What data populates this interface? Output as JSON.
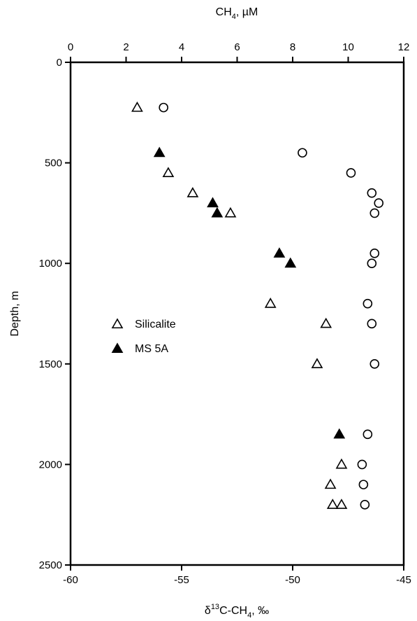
{
  "chart_data": {
    "type": "scatter",
    "top_axis": {
      "label_main": "CH",
      "label_sub": "4",
      "label_rest": ", µM",
      "range": [
        0,
        12
      ],
      "ticks": [
        "0",
        "2",
        "4",
        "6",
        "8",
        "10",
        "12"
      ]
    },
    "bottom_axis": {
      "label_delta": "δ",
      "label_sup": "13",
      "label_main": "C-CH",
      "label_sub": "4",
      "label_rest": ", ‰",
      "range": [
        -60,
        -45
      ],
      "ticks": [
        "-60",
        "-55",
        "-50",
        "-45"
      ]
    },
    "y_axis": {
      "label": "Depth, m",
      "range": [
        0,
        2500
      ],
      "inverted": true,
      "ticks": [
        "0",
        "500",
        "1000",
        "1500",
        "2000",
        "2500"
      ]
    },
    "series": [
      {
        "name": "Silicalite",
        "marker": "open-triangle",
        "axis": "bottom",
        "points": [
          [
            -57.0,
            225
          ],
          [
            -55.6,
            550
          ],
          [
            -54.5,
            650
          ],
          [
            -52.8,
            750
          ],
          [
            -51.0,
            1200
          ],
          [
            -48.5,
            1300
          ],
          [
            -48.9,
            1500
          ],
          [
            -47.8,
            2000
          ],
          [
            -48.3,
            2100
          ],
          [
            -48.2,
            2200
          ],
          [
            -47.8,
            2200
          ]
        ]
      },
      {
        "name": "MS 5A",
        "marker": "filled-triangle",
        "axis": "bottom",
        "points": [
          [
            -56.0,
            450
          ],
          [
            -53.6,
            700
          ],
          [
            -53.4,
            750
          ],
          [
            -50.6,
            950
          ],
          [
            -50.1,
            1000
          ],
          [
            -47.9,
            1850
          ]
        ]
      },
      {
        "name": "",
        "marker": "open-circle",
        "axis": "top",
        "points": [
          [
            3.35,
            225
          ],
          [
            8.35,
            450
          ],
          [
            10.1,
            550
          ],
          [
            10.85,
            650
          ],
          [
            11.1,
            700
          ],
          [
            10.95,
            750
          ],
          [
            10.95,
            950
          ],
          [
            10.85,
            1000
          ],
          [
            10.7,
            1200
          ],
          [
            10.85,
            1300
          ],
          [
            10.95,
            1500
          ],
          [
            10.7,
            1850
          ],
          [
            10.5,
            2000
          ],
          [
            10.55,
            2100
          ],
          [
            10.6,
            2200
          ]
        ]
      }
    ],
    "legend": {
      "placement": "left-middle",
      "entries": [
        "Silicalite",
        "MS 5A"
      ]
    }
  }
}
